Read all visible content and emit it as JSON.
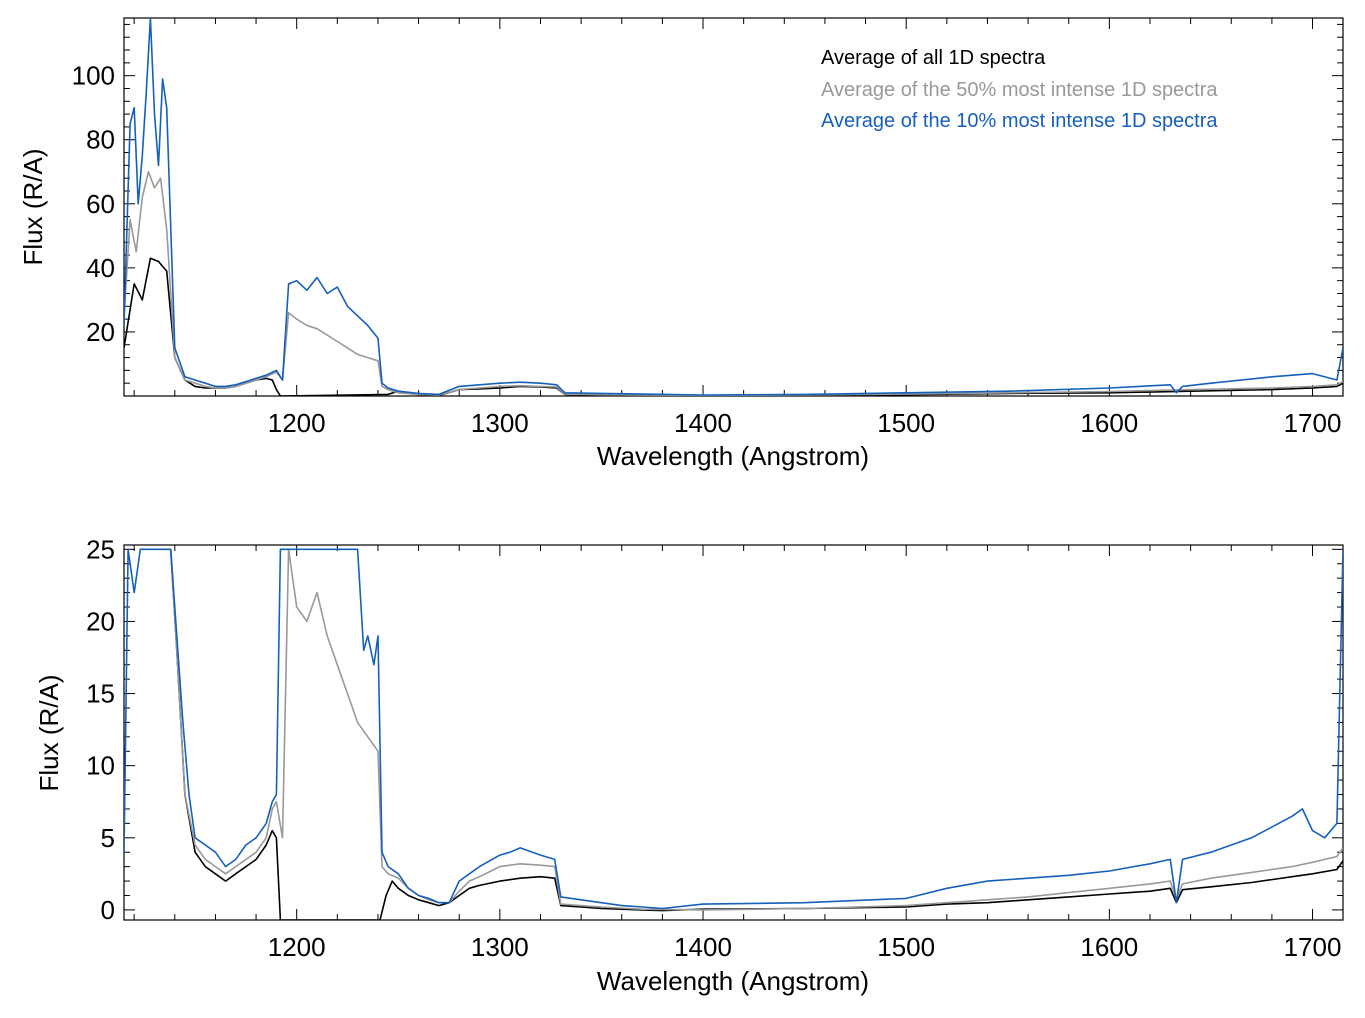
{
  "colors": {
    "all": "#000000",
    "top50": "#999999",
    "top10": "#1560bd",
    "axis": "#000000"
  },
  "legend": [
    {
      "label": "Average of all 1D spectra",
      "color": "#000000"
    },
    {
      "label": "Average of the 50% most intense 1D spectra",
      "color": "#999999"
    },
    {
      "label": "Average of the 10% most intense 1D spectra",
      "color": "#1560bd"
    }
  ],
  "chart_data": [
    {
      "type": "line",
      "xlabel": "Wavelength (Angstrom)",
      "ylabel": "Flux (R/A)",
      "xlim": [
        1115,
        1715
      ],
      "ylim": [
        0,
        118
      ],
      "xticks": [
        "1200",
        "1300",
        "1400",
        "1500",
        "1600",
        "1700"
      ],
      "xtick_values": [
        1200,
        1300,
        1400,
        1500,
        1600,
        1700
      ],
      "yticks": [
        "20",
        "40",
        "60",
        "80",
        "100"
      ],
      "ytick_values": [
        20,
        40,
        60,
        80,
        100
      ],
      "legend_position": "top-right",
      "grid": false,
      "series": [
        {
          "name": "Average of all 1D spectra",
          "color": "#000000",
          "x": [
            1115,
            1120,
            1124,
            1128,
            1132,
            1136,
            1140,
            1145,
            1150,
            1155,
            1160,
            1165,
            1170,
            1175,
            1180,
            1185,
            1188,
            1190,
            1192,
            1245,
            1250,
            1260,
            1270,
            1280,
            1290,
            1300,
            1310,
            1320,
            1328,
            1332,
            1350,
            1400,
            1450,
            1500,
            1550,
            1600,
            1640,
            1680,
            1700,
            1712,
            1715
          ],
          "y": [
            15,
            35,
            30,
            43,
            42,
            39,
            12,
            5,
            3,
            2.5,
            2.5,
            2.5,
            3,
            4,
            5,
            5.5,
            5,
            2,
            0,
            0.5,
            1.5,
            0.5,
            0.2,
            2,
            2.2,
            2.5,
            3,
            2.8,
            2.5,
            0.5,
            0.3,
            0.1,
            0.2,
            0.4,
            0.8,
            1,
            1.5,
            2,
            2.5,
            3,
            4
          ]
        },
        {
          "name": "Average of the 50% most intense 1D spectra",
          "color": "#999999",
          "x": [
            1115,
            1118,
            1121,
            1124,
            1127,
            1130,
            1133,
            1136,
            1140,
            1145,
            1150,
            1155,
            1160,
            1165,
            1170,
            1175,
            1180,
            1185,
            1190,
            1193,
            1196,
            1200,
            1205,
            1210,
            1215,
            1220,
            1225,
            1230,
            1235,
            1240,
            1242,
            1245,
            1250,
            1260,
            1270,
            1280,
            1290,
            1300,
            1310,
            1320,
            1328,
            1332,
            1350,
            1400,
            1450,
            1500,
            1550,
            1600,
            1640,
            1680,
            1700,
            1712,
            1715
          ],
          "y": [
            25,
            55,
            45,
            62,
            70,
            65,
            68,
            52,
            12,
            5,
            4,
            3,
            2.5,
            2.5,
            3,
            4,
            5,
            6,
            7.5,
            5,
            26,
            24,
            22,
            21,
            19,
            17,
            15,
            13,
            12,
            11,
            3,
            2,
            1,
            0.5,
            0.3,
            2,
            2.5,
            3,
            3.2,
            3,
            2.8,
            0.6,
            0.4,
            0.2,
            0.3,
            0.6,
            1,
            1.4,
            2,
            2.5,
            3,
            3.5,
            4.5
          ]
        },
        {
          "name": "Average of the 10% most intense 1D spectra",
          "color": "#1560bd",
          "x": [
            1115,
            1118,
            1120,
            1122,
            1124,
            1126,
            1128,
            1130,
            1132,
            1134,
            1136,
            1140,
            1145,
            1150,
            1155,
            1160,
            1165,
            1170,
            1175,
            1180,
            1185,
            1190,
            1193,
            1196,
            1200,
            1205,
            1210,
            1215,
            1220,
            1225,
            1230,
            1235,
            1240,
            1242,
            1245,
            1250,
            1260,
            1270,
            1280,
            1290,
            1300,
            1310,
            1320,
            1328,
            1332,
            1350,
            1400,
            1450,
            1500,
            1550,
            1600,
            1630,
            1633,
            1636,
            1650,
            1680,
            1700,
            1712,
            1715
          ],
          "y": [
            22,
            85,
            90,
            60,
            75,
            95,
            118,
            88,
            72,
            99,
            90,
            15,
            6,
            5,
            4,
            3,
            3,
            3.5,
            4.5,
            5.5,
            6.5,
            8,
            5,
            35,
            36,
            33,
            37,
            32,
            34,
            28,
            25,
            22,
            18,
            4,
            2.5,
            1.5,
            0.8,
            0.5,
            3,
            3.5,
            4,
            4.3,
            4,
            3.5,
            1,
            0.8,
            0.3,
            0.5,
            1,
            1.5,
            2.5,
            3.5,
            1,
            3,
            4,
            6,
            7,
            5,
            15
          ]
        }
      ]
    },
    {
      "type": "line",
      "xlabel": "Wavelength (Angstrom)",
      "ylabel": "Flux (R/A)",
      "xlim": [
        1115,
        1715
      ],
      "ylim": [
        -0.7,
        25.3
      ],
      "xticks": [
        "1200",
        "1300",
        "1400",
        "1500",
        "1600",
        "1700"
      ],
      "xtick_values": [
        1200,
        1300,
        1400,
        1500,
        1600,
        1700
      ],
      "yticks": [
        "0",
        "5",
        "10",
        "15",
        "20",
        "25"
      ],
      "ytick_values": [
        0,
        5,
        10,
        15,
        20,
        25
      ],
      "legend_position": "none",
      "grid": false,
      "series": [
        {
          "name": "Average of all 1D spectra",
          "color": "#000000",
          "x": [
            1138,
            1141,
            1145,
            1150,
            1155,
            1160,
            1165,
            1170,
            1175,
            1180,
            1185,
            1188,
            1190,
            1192,
            1241,
            1244,
            1247,
            1250,
            1255,
            1260,
            1265,
            1270,
            1275,
            1280,
            1285,
            1290,
            1300,
            1310,
            1320,
            1327,
            1330,
            1340,
            1350,
            1360,
            1370,
            1380,
            1400,
            1450,
            1500,
            1520,
            1540,
            1560,
            1580,
            1600,
            1620,
            1630,
            1633,
            1636,
            1650,
            1670,
            1690,
            1700,
            1712,
            1715
          ],
          "y": [
            25,
            18,
            8,
            4,
            3,
            2.5,
            2,
            2.5,
            3,
            3.5,
            4.5,
            5.5,
            5,
            -0.7,
            -0.7,
            1,
            2,
            1.5,
            1,
            0.7,
            0.5,
            0.3,
            0.5,
            1,
            1.5,
            1.7,
            2,
            2.2,
            2.3,
            2.2,
            0.3,
            0.2,
            0.1,
            0.05,
            0,
            -0.05,
            0.05,
            0.1,
            0.2,
            0.4,
            0.5,
            0.7,
            0.9,
            1.1,
            1.3,
            1.5,
            0.5,
            1.4,
            1.6,
            1.9,
            2.3,
            2.5,
            2.8,
            3.4
          ]
        },
        {
          "name": "Average of the 50% most intense 1D spectra",
          "color": "#999999",
          "x": [
            1138,
            1141,
            1145,
            1150,
            1155,
            1160,
            1165,
            1170,
            1175,
            1180,
            1185,
            1188,
            1190,
            1193,
            1196,
            1200,
            1205,
            1210,
            1215,
            1220,
            1225,
            1230,
            1235,
            1240,
            1242,
            1245,
            1250,
            1255,
            1260,
            1265,
            1270,
            1275,
            1280,
            1285,
            1290,
            1300,
            1310,
            1320,
            1327,
            1330,
            1340,
            1350,
            1370,
            1400,
            1450,
            1500,
            1520,
            1540,
            1560,
            1580,
            1600,
            1620,
            1630,
            1633,
            1636,
            1650,
            1670,
            1690,
            1700,
            1712,
            1715
          ],
          "y": [
            25,
            18,
            8,
            4.5,
            3.5,
            3,
            2.5,
            3,
            3.5,
            4,
            5,
            7,
            7.5,
            5,
            25,
            21,
            20,
            22,
            19,
            17,
            15,
            13,
            12,
            11,
            3,
            2.5,
            2.2,
            1.5,
            1,
            0.7,
            0.5,
            0.5,
            1.3,
            2,
            2.3,
            3,
            3.2,
            3.1,
            3,
            0.4,
            0.3,
            0.2,
            0.05,
            0,
            0.1,
            0.3,
            0.5,
            0.7,
            0.9,
            1.2,
            1.5,
            1.8,
            2,
            0.7,
            1.8,
            2.2,
            2.6,
            3,
            3.3,
            3.7,
            4.3
          ]
        },
        {
          "name": "Average of the 10% most intense 1D spectra",
          "color": "#1560bd",
          "x": [
            1115,
            1117,
            1120,
            1123,
            1138,
            1141,
            1144,
            1147,
            1150,
            1155,
            1160,
            1165,
            1170,
            1175,
            1180,
            1185,
            1188,
            1190,
            1192,
            1230,
            1233,
            1235,
            1238,
            1240,
            1242,
            1245,
            1250,
            1255,
            1260,
            1265,
            1270,
            1275,
            1280,
            1285,
            1290,
            1300,
            1305,
            1310,
            1320,
            1327,
            1330,
            1340,
            1350,
            1360,
            1370,
            1380,
            1400,
            1450,
            1500,
            1520,
            1540,
            1560,
            1580,
            1600,
            1620,
            1630,
            1633,
            1636,
            1650,
            1670,
            1690,
            1695,
            1700,
            1706,
            1712,
            1715
          ],
          "y": [
            4,
            25,
            22,
            25,
            25,
            19,
            13,
            8,
            5,
            4.5,
            4,
            3,
            3.5,
            4.5,
            5,
            6,
            7.5,
            8,
            25,
            25,
            18,
            19,
            17,
            19,
            4,
            3,
            2.5,
            1.5,
            1,
            0.8,
            0.5,
            0.5,
            2,
            2.5,
            3,
            3.8,
            4,
            4.3,
            3.8,
            3.5,
            0.9,
            0.7,
            0.5,
            0.3,
            0.2,
            0.1,
            0.4,
            0.5,
            0.8,
            1.5,
            2,
            2.2,
            2.4,
            2.7,
            3.2,
            3.5,
            0.5,
            3.5,
            4,
            5,
            6.5,
            7,
            5.5,
            5,
            6,
            25
          ]
        }
      ]
    }
  ]
}
